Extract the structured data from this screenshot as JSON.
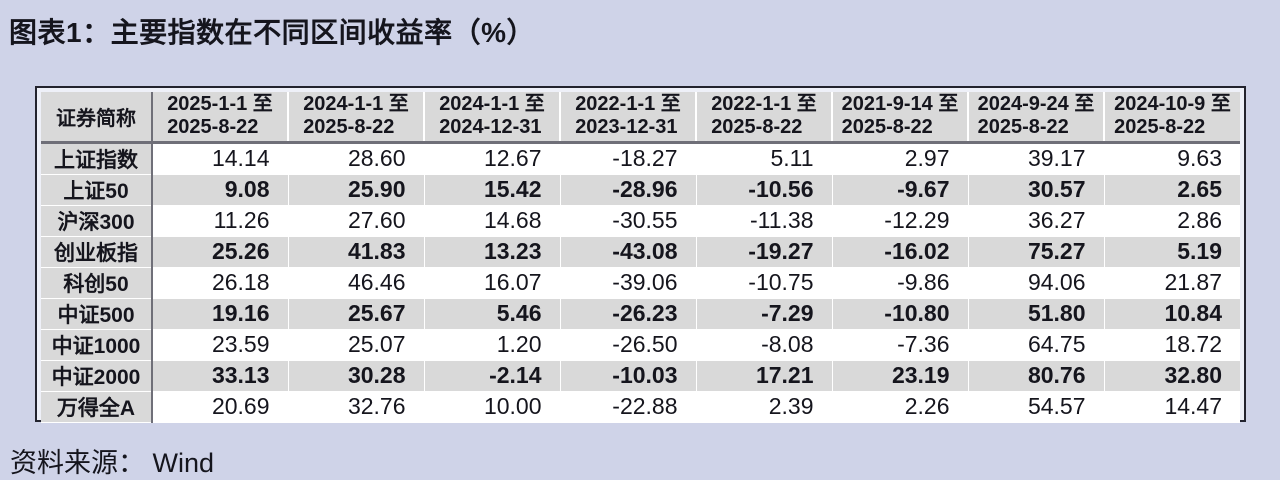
{
  "title": "图表1：主要指数在不同区间收益率（%）",
  "source": "资料来源： Wind",
  "table": {
    "corner_header": "证券简称"
  },
  "colors": {
    "page_bg": "#cfd3e8",
    "frame_border": "#23232e",
    "frame_gap": "#eef0f8",
    "cell_gray": "#d9d9d9",
    "divider": "#6f6f78",
    "row_white": "#ffffff",
    "text": "#15151d"
  },
  "chart_data": {
    "type": "table",
    "title": "主要指数在不同区间收益率（%）",
    "row_header_label": "证券简称",
    "columns": [
      {
        "line1": "2025-1-1 至",
        "line2": "2025-8-22"
      },
      {
        "line1": "2024-1-1 至",
        "line2": "2025-8-22"
      },
      {
        "line1": "2024-1-1 至",
        "line2": "2024-12-31"
      },
      {
        "line1": "2022-1-1 至",
        "line2": "2023-12-31"
      },
      {
        "line1": "2022-1-1 至",
        "line2": "2025-8-22"
      },
      {
        "line1": "2021-9-14 至",
        "line2": "2025-8-22"
      },
      {
        "line1": "2024-9-24 至",
        "line2": "2025-8-22"
      },
      {
        "line1": "2024-10-9 至",
        "line2": "2025-8-22"
      }
    ],
    "rows": [
      {
        "name": "上证指数",
        "values": [
          14.14,
          28.6,
          12.67,
          -18.27,
          5.11,
          2.97,
          39.17,
          9.63
        ]
      },
      {
        "name": "上证50",
        "values": [
          9.08,
          25.9,
          15.42,
          -28.96,
          -10.56,
          -9.67,
          30.57,
          2.65
        ]
      },
      {
        "name": "沪深300",
        "values": [
          11.26,
          27.6,
          14.68,
          -30.55,
          -11.38,
          -12.29,
          36.27,
          2.86
        ]
      },
      {
        "name": "创业板指",
        "values": [
          25.26,
          41.83,
          13.23,
          -43.08,
          -19.27,
          -16.02,
          75.27,
          5.19
        ]
      },
      {
        "name": "科创50",
        "values": [
          26.18,
          46.46,
          16.07,
          -39.06,
          -10.75,
          -9.86,
          94.06,
          21.87
        ]
      },
      {
        "name": "中证500",
        "values": [
          19.16,
          25.67,
          5.46,
          -26.23,
          -7.29,
          -10.8,
          51.8,
          10.84
        ]
      },
      {
        "name": "中证1000",
        "values": [
          23.59,
          25.07,
          1.2,
          -26.5,
          -8.08,
          -7.36,
          64.75,
          18.72
        ]
      },
      {
        "name": "中证2000",
        "values": [
          33.13,
          30.28,
          -2.14,
          -10.03,
          17.21,
          23.19,
          80.76,
          32.8
        ]
      },
      {
        "name": "万得全A",
        "values": [
          20.69,
          32.76,
          10.0,
          -22.88,
          2.39,
          2.26,
          54.57,
          14.47
        ]
      }
    ]
  }
}
